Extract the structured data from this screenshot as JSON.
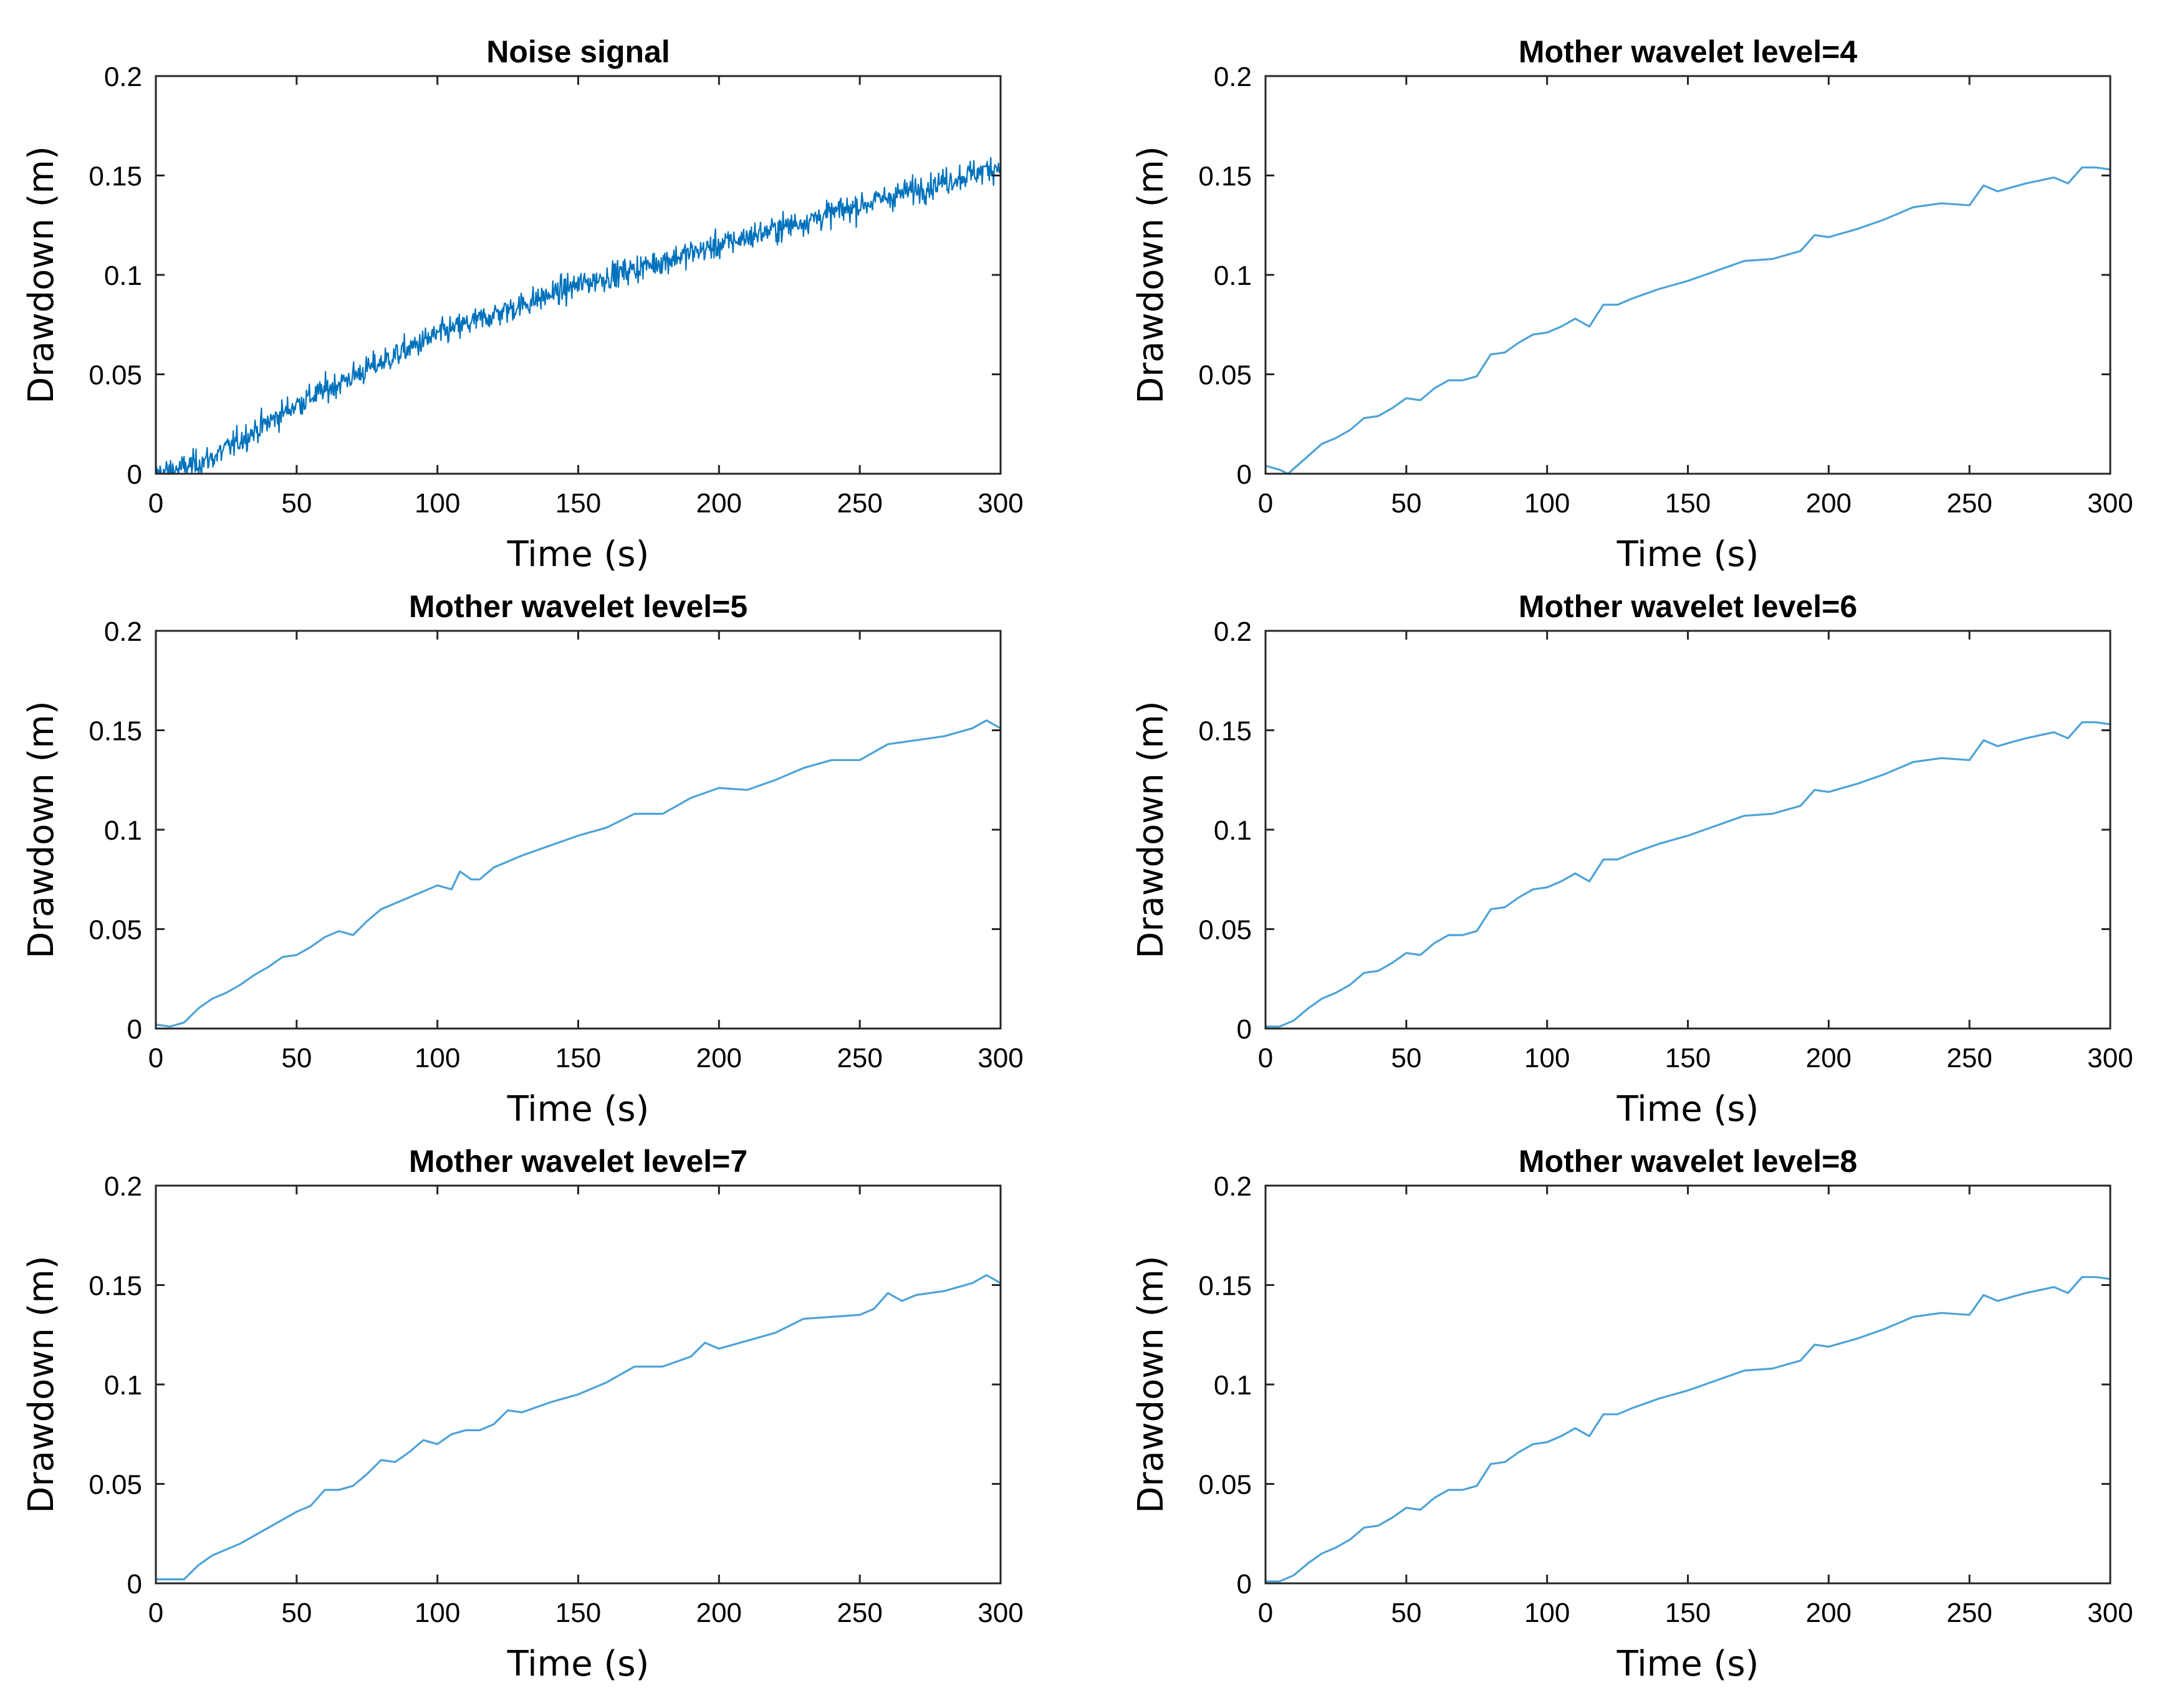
{
  "figure": {
    "panel_count": 6
  },
  "chart_data": [
    {
      "id": "noise",
      "type": "line",
      "title": "Noise signal",
      "xlabel": "Time (s)",
      "ylabel": "Drawdown (m)",
      "xlim": [
        0,
        300
      ],
      "ylim": [
        0,
        0.2
      ],
      "xticks": [
        0,
        50,
        100,
        150,
        200,
        250,
        300
      ],
      "xtick_labels": [
        "0",
        "50",
        "100",
        "150",
        "200",
        "250",
        "300"
      ],
      "yticks": [
        0,
        0.05,
        0.1,
        0.15,
        0.2
      ],
      "ytick_labels": [
        "0",
        "0.05",
        "0.1",
        "0.15",
        "0.2"
      ],
      "series": [
        {
          "name": "Noise signal",
          "color": "#0072bd",
          "noise_amplitude": 0.012,
          "samples": 1200,
          "trend": {
            "x": [
              0,
              10,
              20,
              50,
              100,
              150,
              200,
              250,
              300
            ],
            "y": [
              0,
              0.003,
              0.008,
              0.035,
              0.07,
              0.095,
              0.115,
              0.135,
              0.155
            ]
          }
        }
      ]
    },
    {
      "id": "level4",
      "type": "line",
      "title": "Mother wavelet level=4",
      "xlabel": "Time (s)",
      "ylabel": "Drawdown (m)",
      "xlim": [
        0,
        300
      ],
      "ylim": [
        0,
        0.2
      ],
      "xticks": [
        0,
        50,
        100,
        150,
        200,
        250,
        300
      ],
      "xtick_labels": [
        "0",
        "50",
        "100",
        "150",
        "200",
        "250",
        "300"
      ],
      "yticks": [
        0,
        0.05,
        0.1,
        0.15,
        0.2
      ],
      "ytick_labels": [
        "0",
        "0.05",
        "0.1",
        "0.15",
        "0.2"
      ],
      "series": [
        {
          "name": "Level 4",
          "color": "#4da3d6",
          "x": [
            0,
            5,
            8,
            12,
            20,
            25,
            30,
            35,
            40,
            45,
            50,
            55,
            60,
            65,
            70,
            75,
            80,
            85,
            90,
            95,
            100,
            105,
            110,
            115,
            120,
            125,
            130,
            140,
            150,
            160,
            170,
            180,
            190,
            195,
            200,
            210,
            220,
            230,
            240,
            250,
            255,
            260,
            265,
            270,
            280,
            285,
            290,
            295,
            300
          ],
          "y": [
            0.004,
            0.002,
            0.0,
            0.005,
            0.015,
            0.018,
            0.022,
            0.028,
            0.029,
            0.033,
            0.038,
            0.037,
            0.043,
            0.047,
            0.047,
            0.049,
            0.06,
            0.061,
            0.066,
            0.07,
            0.071,
            0.074,
            0.078,
            0.074,
            0.085,
            0.085,
            0.088,
            0.093,
            0.097,
            0.102,
            0.107,
            0.108,
            0.112,
            0.12,
            0.119,
            0.123,
            0.128,
            0.134,
            0.136,
            0.135,
            0.145,
            0.142,
            0.144,
            0.146,
            0.149,
            0.146,
            0.154,
            0.154,
            0.153
          ]
        }
      ]
    },
    {
      "id": "level5",
      "type": "line",
      "title": "Mother wavelet level=5",
      "xlabel": "Time (s)",
      "ylabel": "Drawdown (m)",
      "xlim": [
        0,
        300
      ],
      "ylim": [
        0,
        0.2
      ],
      "xticks": [
        0,
        50,
        100,
        150,
        200,
        250,
        300
      ],
      "xtick_labels": [
        "0",
        "50",
        "100",
        "150",
        "200",
        "250",
        "300"
      ],
      "yticks": [
        0,
        0.05,
        0.1,
        0.15,
        0.2
      ],
      "ytick_labels": [
        "0",
        "0.05",
        "0.1",
        "0.15",
        "0.2"
      ],
      "series": [
        {
          "name": "Level 5",
          "color": "#4da3d6",
          "x": [
            0,
            5,
            10,
            15,
            20,
            25,
            30,
            35,
            40,
            45,
            50,
            55,
            60,
            65,
            70,
            75,
            80,
            90,
            100,
            105,
            108,
            112,
            115,
            120,
            130,
            140,
            150,
            160,
            170,
            180,
            190,
            200,
            210,
            220,
            230,
            240,
            250,
            260,
            270,
            280,
            290,
            295,
            300
          ],
          "y": [
            0.002,
            0.001,
            0.003,
            0.01,
            0.015,
            0.018,
            0.022,
            0.027,
            0.031,
            0.036,
            0.037,
            0.041,
            0.046,
            0.049,
            0.047,
            0.054,
            0.06,
            0.066,
            0.072,
            0.07,
            0.079,
            0.075,
            0.075,
            0.081,
            0.087,
            0.092,
            0.097,
            0.101,
            0.108,
            0.108,
            0.116,
            0.121,
            0.12,
            0.125,
            0.131,
            0.135,
            0.135,
            0.143,
            0.145,
            0.147,
            0.151,
            0.155,
            0.151
          ]
        }
      ]
    },
    {
      "id": "level6",
      "type": "line",
      "title": "Mother wavelet level=6",
      "xlabel": "Time (s)",
      "ylabel": "Drawdown (m)",
      "xlim": [
        0,
        300
      ],
      "ylim": [
        0,
        0.2
      ],
      "xticks": [
        0,
        50,
        100,
        150,
        200,
        250,
        300
      ],
      "xtick_labels": [
        "0",
        "50",
        "100",
        "150",
        "200",
        "250",
        "300"
      ],
      "yticks": [
        0,
        0.05,
        0.1,
        0.15,
        0.2
      ],
      "ytick_labels": [
        "0",
        "0.05",
        "0.1",
        "0.15",
        "0.2"
      ],
      "series": [
        {
          "name": "Level 6",
          "color": "#4da3d6",
          "x": [
            0,
            5,
            10,
            15,
            20,
            25,
            30,
            35,
            40,
            45,
            50,
            55,
            60,
            65,
            70,
            75,
            80,
            85,
            90,
            95,
            100,
            105,
            110,
            115,
            120,
            125,
            130,
            140,
            150,
            160,
            170,
            180,
            190,
            195,
            200,
            210,
            220,
            230,
            240,
            250,
            255,
            260,
            265,
            270,
            280,
            285,
            290,
            295,
            300
          ],
          "y": [
            0.001,
            0.001,
            0.004,
            0.01,
            0.015,
            0.018,
            0.022,
            0.028,
            0.029,
            0.033,
            0.038,
            0.037,
            0.043,
            0.047,
            0.047,
            0.049,
            0.06,
            0.061,
            0.066,
            0.07,
            0.071,
            0.074,
            0.078,
            0.074,
            0.085,
            0.085,
            0.088,
            0.093,
            0.097,
            0.102,
            0.107,
            0.108,
            0.112,
            0.12,
            0.119,
            0.123,
            0.128,
            0.134,
            0.136,
            0.135,
            0.145,
            0.142,
            0.144,
            0.146,
            0.149,
            0.146,
            0.154,
            0.154,
            0.153
          ]
        }
      ]
    },
    {
      "id": "level7",
      "type": "line",
      "title": "Mother wavelet level=7",
      "xlabel": "Time (s)",
      "ylabel": "Drawdown (m)",
      "xlim": [
        0,
        300
      ],
      "ylim": [
        0,
        0.2
      ],
      "xticks": [
        0,
        50,
        100,
        150,
        200,
        250,
        300
      ],
      "xtick_labels": [
        "0",
        "50",
        "100",
        "150",
        "200",
        "250",
        "300"
      ],
      "yticks": [
        0,
        0.05,
        0.1,
        0.15,
        0.2
      ],
      "ytick_labels": [
        "0",
        "0.05",
        "0.1",
        "0.15",
        "0.2"
      ],
      "series": [
        {
          "name": "Level 7",
          "color": "#4da3d6",
          "x": [
            0,
            5,
            10,
            15,
            20,
            30,
            40,
            50,
            55,
            60,
            65,
            70,
            75,
            80,
            85,
            90,
            95,
            100,
            105,
            110,
            115,
            120,
            125,
            130,
            140,
            150,
            160,
            170,
            180,
            190,
            195,
            200,
            210,
            220,
            230,
            240,
            250,
            255,
            260,
            265,
            270,
            280,
            290,
            295,
            300
          ],
          "y": [
            0.002,
            0.002,
            0.002,
            0.009,
            0.014,
            0.02,
            0.028,
            0.036,
            0.039,
            0.047,
            0.047,
            0.049,
            0.055,
            0.062,
            0.061,
            0.066,
            0.072,
            0.07,
            0.075,
            0.077,
            0.077,
            0.08,
            0.087,
            0.086,
            0.091,
            0.095,
            0.101,
            0.109,
            0.109,
            0.114,
            0.121,
            0.118,
            0.122,
            0.126,
            0.133,
            0.134,
            0.135,
            0.138,
            0.146,
            0.142,
            0.145,
            0.147,
            0.151,
            0.155,
            0.151
          ]
        }
      ]
    },
    {
      "id": "level8",
      "type": "line",
      "title": "Mother wavelet level=8",
      "xlabel": "Time (s)",
      "ylabel": "Drawdown (m)",
      "xlim": [
        0,
        300
      ],
      "ylim": [
        0,
        0.2
      ],
      "xticks": [
        0,
        50,
        100,
        150,
        200,
        250,
        300
      ],
      "xtick_labels": [
        "0",
        "50",
        "100",
        "150",
        "200",
        "250",
        "300"
      ],
      "yticks": [
        0,
        0.05,
        0.1,
        0.15,
        0.2
      ],
      "ytick_labels": [
        "0",
        "0.05",
        "0.1",
        "0.15",
        "0.2"
      ],
      "series": [
        {
          "name": "Level 8",
          "color": "#4da3d6",
          "x": [
            0,
            5,
            10,
            15,
            20,
            25,
            30,
            35,
            40,
            45,
            50,
            55,
            60,
            65,
            70,
            75,
            80,
            85,
            90,
            95,
            100,
            105,
            110,
            115,
            120,
            125,
            130,
            140,
            150,
            160,
            170,
            180,
            190,
            195,
            200,
            210,
            220,
            230,
            240,
            250,
            255,
            260,
            265,
            270,
            280,
            285,
            290,
            295,
            300
          ],
          "y": [
            0.001,
            0.001,
            0.004,
            0.01,
            0.015,
            0.018,
            0.022,
            0.028,
            0.029,
            0.033,
            0.038,
            0.037,
            0.043,
            0.047,
            0.047,
            0.049,
            0.06,
            0.061,
            0.066,
            0.07,
            0.071,
            0.074,
            0.078,
            0.074,
            0.085,
            0.085,
            0.088,
            0.093,
            0.097,
            0.102,
            0.107,
            0.108,
            0.112,
            0.12,
            0.119,
            0.123,
            0.128,
            0.134,
            0.136,
            0.135,
            0.145,
            0.142,
            0.144,
            0.146,
            0.149,
            0.146,
            0.154,
            0.154,
            0.153
          ]
        }
      ]
    }
  ]
}
